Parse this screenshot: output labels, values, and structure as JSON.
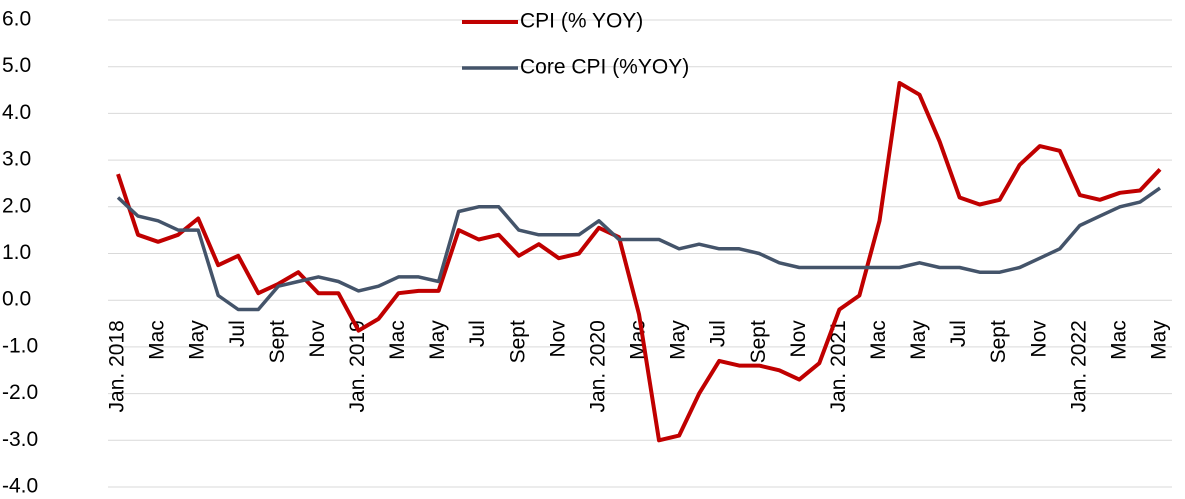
{
  "chart_data": {
    "type": "line",
    "categories": [
      "Jan. 2018",
      null,
      "Mac",
      null,
      "May",
      null,
      "Jul",
      null,
      "Sept",
      null,
      "Nov",
      null,
      "Jan. 2019",
      null,
      "Mac",
      null,
      "May",
      null,
      "Jul",
      null,
      "Sept",
      null,
      "Nov",
      null,
      "Jan. 2020",
      null,
      "Mac",
      null,
      "May",
      null,
      "Jul",
      null,
      "Sept",
      null,
      "Nov",
      null,
      "Jan. 2021",
      null,
      "Mac",
      null,
      "May",
      null,
      "Jul",
      null,
      "Sept",
      null,
      "Nov",
      null,
      "Jan. 2022",
      null,
      "Mac",
      null,
      "May"
    ],
    "series": [
      {
        "name": "CPI (% YOY)",
        "color": "#c00000",
        "values": [
          2.7,
          1.4,
          1.25,
          1.4,
          1.75,
          0.75,
          0.95,
          0.15,
          0.35,
          0.6,
          0.15,
          0.15,
          -0.65,
          -0.4,
          0.15,
          0.2,
          0.2,
          1.5,
          1.3,
          1.4,
          0.95,
          1.2,
          0.9,
          1.0,
          1.55,
          1.35,
          -0.3,
          -3.0,
          -2.9,
          -2.0,
          -1.3,
          -1.4,
          -1.4,
          -1.5,
          -1.7,
          -1.35,
          -0.2,
          0.1,
          1.7,
          4.65,
          4.4,
          3.4,
          2.2,
          2.05,
          2.15,
          2.9,
          3.3,
          3.2,
          2.25,
          2.15,
          2.3,
          2.35,
          2.8
        ]
      },
      {
        "name": "Core CPI (%YOY)",
        "color": "#44546a",
        "values": [
          2.2,
          1.8,
          1.7,
          1.5,
          1.5,
          0.1,
          -0.2,
          -0.2,
          0.3,
          0.4,
          0.5,
          0.4,
          0.2,
          0.3,
          0.5,
          0.5,
          0.4,
          1.9,
          2.0,
          2.0,
          1.5,
          1.4,
          1.4,
          1.4,
          1.7,
          1.3,
          1.3,
          1.3,
          1.1,
          1.2,
          1.1,
          1.1,
          1.0,
          0.8,
          0.7,
          0.7,
          0.7,
          0.7,
          0.7,
          0.7,
          0.8,
          0.7,
          0.7,
          0.6,
          0.6,
          0.7,
          0.9,
          1.1,
          1.6,
          1.8,
          2.0,
          2.1,
          2.4
        ]
      }
    ],
    "ylim": [
      -4,
      6
    ],
    "yticks": [
      {
        "value": -4,
        "label": "-4.0"
      },
      {
        "value": -3,
        "label": "-3.0"
      },
      {
        "value": -2,
        "label": "-2.0"
      },
      {
        "value": -1,
        "label": "-1.0"
      },
      {
        "value": 0,
        "label": "0.0"
      },
      {
        "value": 1,
        "label": "1.0"
      },
      {
        "value": 2,
        "label": "2.0"
      },
      {
        "value": 3,
        "label": "3.0"
      },
      {
        "value": 4,
        "label": "4.0"
      },
      {
        "value": 5,
        "label": "5.0"
      },
      {
        "value": 6,
        "label": "6.0"
      }
    ],
    "grid": true,
    "legend": "top"
  }
}
